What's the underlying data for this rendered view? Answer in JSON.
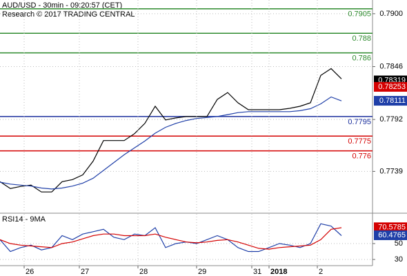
{
  "chart_data": [
    {
      "type": "line",
      "title": "AUD/USD - 30min - 09:20:57 (CET)",
      "subtitle": "Research © 2017 TRADING CENTRAL",
      "xlim": [
        0,
        108
      ],
      "ylim": [
        0.7697,
        0.7914
      ],
      "yticks": [
        {
          "value": 0.79,
          "label": "0.7900"
        },
        0.7846,
        0.7792,
        0.7739
      ],
      "grid": true,
      "x": [
        0,
        3,
        6,
        9,
        12,
        15,
        18,
        21,
        24,
        27,
        30,
        33,
        36,
        39,
        42,
        45,
        48,
        51,
        54,
        57,
        60,
        63,
        66,
        69,
        72,
        75,
        78,
        81,
        84,
        87,
        90,
        93,
        96,
        99
      ],
      "series": [
        {
          "color": "#000000",
          "values": [
            0.77285,
            0.77215,
            0.77236,
            0.7725,
            0.7718,
            0.7718,
            0.77285,
            0.77306,
            0.77355,
            0.77495,
            0.77705,
            0.77705,
            0.77705,
            0.77775,
            0.7788,
            0.78055,
            0.77915,
            0.77936,
            0.7795,
            0.7795,
            0.7795,
            0.78125,
            0.78195,
            0.7809,
            0.7802,
            0.7802,
            0.7802,
            0.7802,
            0.78034,
            0.78055,
            0.7809,
            0.7837,
            0.7844,
            0.78335
          ]
        },
        {
          "color": "#1f3fa8",
          "values": [
            0.7728,
            0.7726,
            0.7725,
            0.7724,
            0.7722,
            0.7721,
            0.7722,
            0.7724,
            0.7727,
            0.7732,
            0.774,
            0.7748,
            0.7756,
            0.7763,
            0.777,
            0.7778,
            0.7784,
            0.7788,
            0.7791,
            0.7793,
            0.7794,
            0.7795,
            0.7797,
            0.7799,
            0.78,
            0.78,
            0.78,
            0.78,
            0.78,
            0.7801,
            0.7803,
            0.7808,
            0.7815,
            0.7811
          ]
        }
      ],
      "levels": [
        {
          "value": 0.7905,
          "color": "#2e8b2e"
        },
        {
          "value": 0.788,
          "color": "#2e8b2e"
        },
        {
          "value": 0.786,
          "color": "#2e8b2e"
        },
        {
          "value": 0.7795,
          "color": "#1a2e9c"
        },
        {
          "value": 0.7775,
          "color": "#d40000"
        },
        {
          "value": 0.776,
          "color": "#d40000"
        }
      ],
      "last_values": [
        {
          "value": 0.78319,
          "color": "#000000"
        },
        {
          "value": 0.78253,
          "color": "#d40000"
        },
        {
          "value": 0.78111,
          "color": "#1f3fa8"
        }
      ]
    },
    {
      "type": "line",
      "title": "RSI14 - 9MA",
      "xlim": [
        0,
        108
      ],
      "ylim": [
        22.2,
        87.4
      ],
      "yticks": [
        50,
        30
      ],
      "xticks": [
        {
          "value": 7,
          "label": "26"
        },
        {
          "value": 23,
          "label": "27"
        },
        {
          "value": 40,
          "label": "28"
        },
        {
          "value": 57,
          "label": "29"
        },
        {
          "value": 73,
          "label": "31"
        },
        {
          "value": 78,
          "label": "2018"
        },
        {
          "value": 92,
          "label": "2"
        }
      ],
      "grid": true,
      "x": [
        0,
        3,
        6,
        9,
        12,
        15,
        18,
        21,
        24,
        27,
        30,
        33,
        36,
        39,
        42,
        45,
        48,
        51,
        54,
        57,
        60,
        63,
        66,
        69,
        72,
        75,
        78,
        81,
        84,
        87,
        90,
        93,
        96,
        99
      ],
      "series": [
        {
          "color": "#1f3fa8",
          "values": [
            55,
            40,
            45,
            48,
            42,
            45,
            60,
            55,
            62,
            65,
            68,
            58,
            55,
            62,
            60,
            70,
            45,
            50,
            52,
            50,
            55,
            60,
            55,
            45,
            40,
            40,
            45,
            50,
            48,
            45,
            50,
            75,
            72,
            60
          ]
        },
        {
          "color": "#d40000",
          "values": [
            55,
            50,
            48,
            47,
            46,
            45,
            50,
            52,
            56,
            60,
            62,
            62,
            60,
            60,
            60,
            62,
            58,
            55,
            52,
            51,
            52,
            54,
            55,
            52,
            48,
            44,
            43,
            45,
            46,
            47,
            48,
            55,
            68,
            70
          ]
        }
      ],
      "last_values": [
        {
          "value": 70.5785,
          "color": "#d40000"
        },
        {
          "value": 60.4765,
          "color": "#1f3fa8"
        }
      ]
    }
  ]
}
